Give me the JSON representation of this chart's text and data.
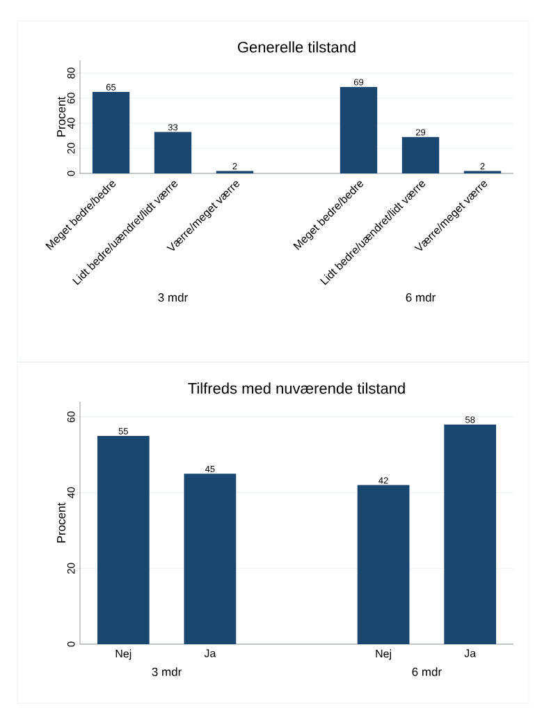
{
  "chart_data": [
    {
      "type": "bar",
      "title": "Generelle tilstand",
      "ylabel": "Procent",
      "categories": [
        "Meget bedre/bedre",
        "Lidt bedre/uændret/lidt værre",
        "Værre/meget værre",
        null,
        "Meget bedre/bedre",
        "Lidt bedre/uændret/lidt værre",
        "Værre/meget værre"
      ],
      "values": [
        65,
        33,
        2,
        null,
        69,
        29,
        2
      ],
      "color": "#1a476f",
      "ylim": [
        0,
        90
      ],
      "yticks": [
        0,
        20,
        40,
        60,
        80
      ],
      "grid": "y",
      "data_labels": true,
      "annotations": [
        "3 mdr",
        "6 mdr"
      ]
    },
    {
      "type": "bar",
      "title": "Tilfreds med nuværende tilstand",
      "ylabel": "Procent",
      "categories": [
        "Nej",
        "Ja",
        null,
        "Nej",
        "Ja"
      ],
      "values": [
        55,
        45,
        null,
        42,
        58
      ],
      "color": "#1a476f",
      "ylim": [
        0,
        64
      ],
      "yticks": [
        0,
        20,
        40,
        60
      ],
      "grid": "y",
      "data_labels": true,
      "annotations": [
        "3 mdr",
        "6 mdr"
      ]
    }
  ]
}
